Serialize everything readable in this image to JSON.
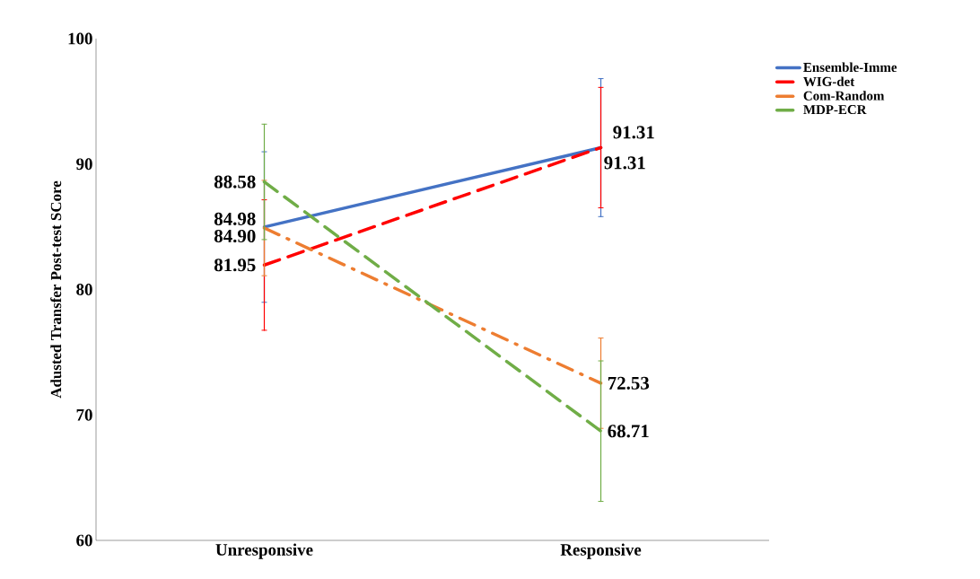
{
  "chart_data": {
    "type": "line",
    "ylabel": "Adusted Transfer Post-test SCore",
    "categories": [
      "Unresponsive",
      "Responsive"
    ],
    "series": [
      {
        "name": "Ensemble-Imme",
        "color": "#4472c4",
        "line_style": "solid",
        "values": [
          84.98,
          91.31
        ],
        "errors": [
          6.0,
          5.5
        ]
      },
      {
        "name": "WIG-det",
        "color": "#ff0000",
        "line_style": "dashed",
        "values": [
          81.95,
          91.31
        ],
        "errors": [
          5.2,
          4.8
        ]
      },
      {
        "name": "Com-Random",
        "color": "#ed7d31",
        "line_style": "dashdot",
        "values": [
          84.9,
          72.53
        ],
        "value_labels": [
          "84.90",
          "72.53"
        ],
        "errors": [
          3.8,
          3.6
        ]
      },
      {
        "name": "MDP-ECR",
        "color": "#70ad47",
        "line_style": "dashed",
        "values": [
          88.58,
          68.71
        ],
        "errors": [
          4.6,
          5.6
        ]
      }
    ],
    "ylim": [
      60,
      100
    ],
    "yticks": [
      60,
      70,
      80,
      90,
      100
    ],
    "data_labels": true,
    "legend": "right",
    "grid": false,
    "marker": "none"
  }
}
